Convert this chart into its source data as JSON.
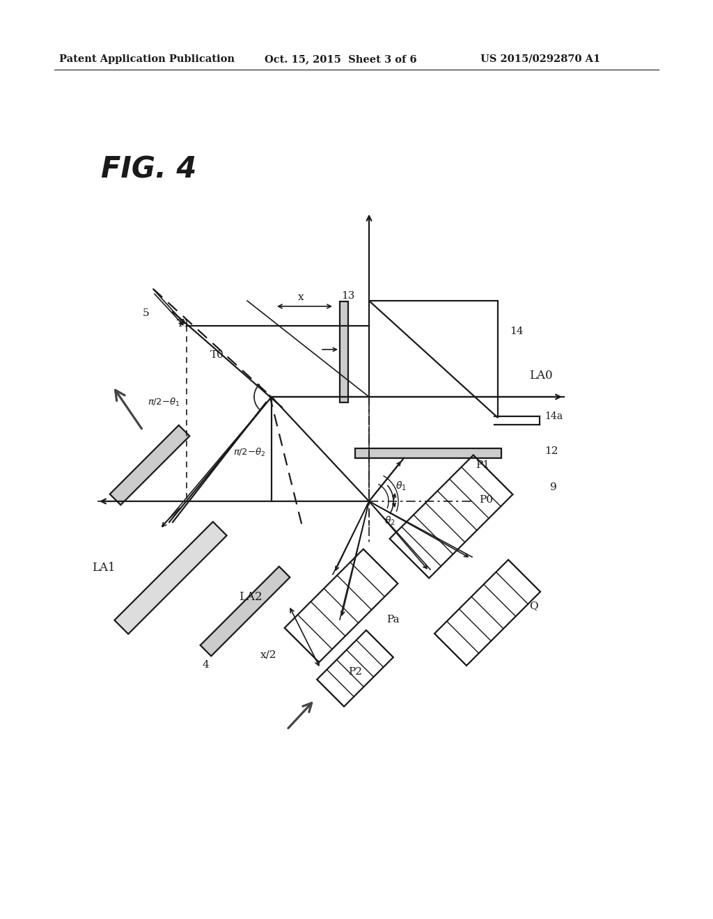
{
  "bg_color": "#ffffff",
  "header_left": "Patent Application Publication",
  "header_mid": "Oct. 15, 2015  Sheet 3 of 6",
  "header_right": "US 2015/0292870 A1",
  "fig_label": "FIG. 4",
  "lc": "#1a1a1a",
  "gray_fill": "#cccccc"
}
